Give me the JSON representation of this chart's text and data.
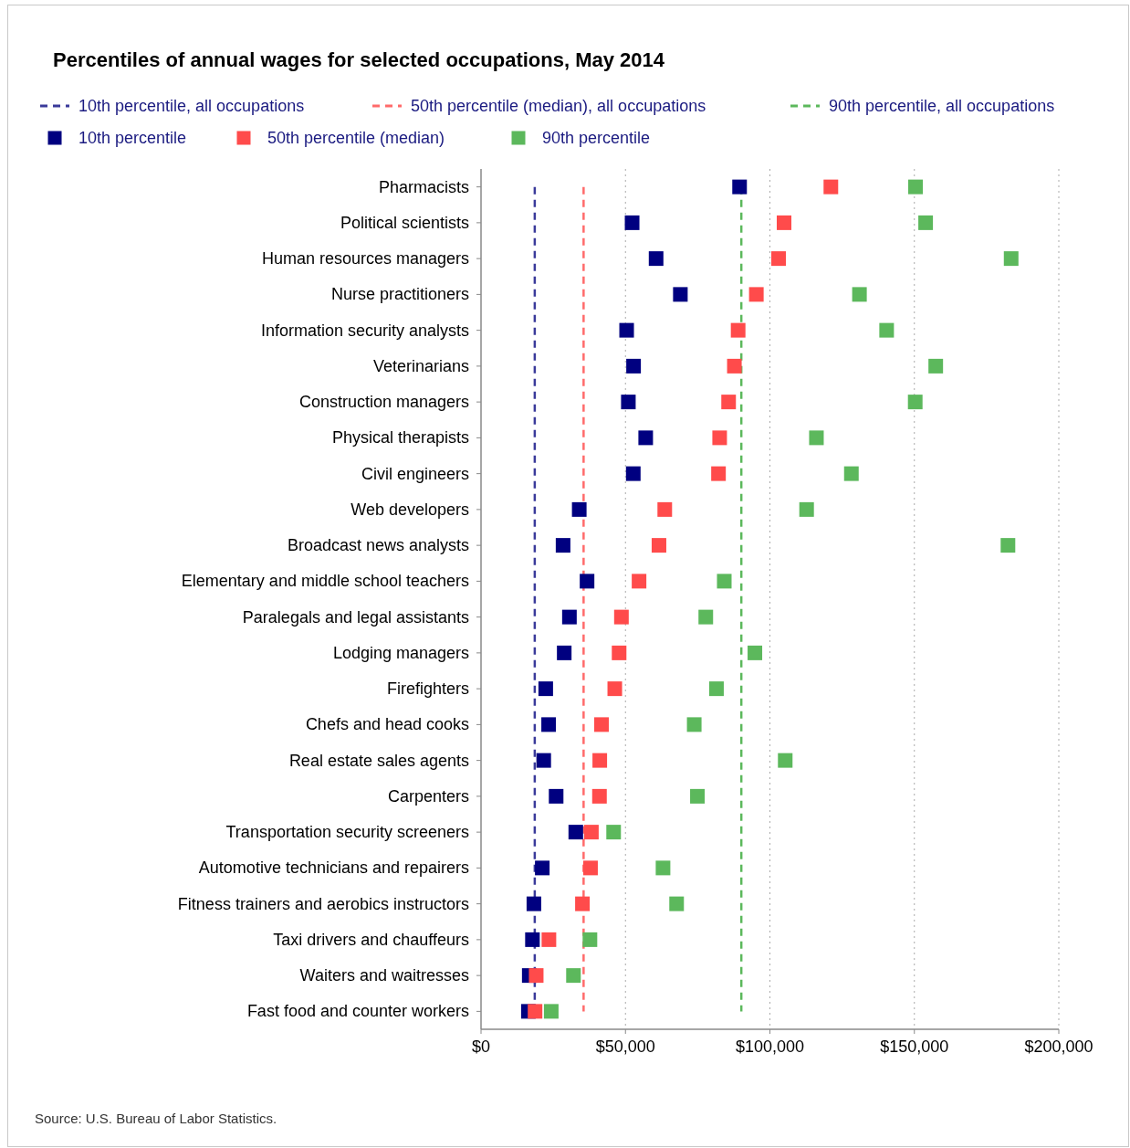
{
  "chart_data": {
    "type": "scatter",
    "orientation": "horizontal",
    "title": "Percentiles of annual wages for selected occupations, May 2014",
    "categories": [
      "Pharmacists",
      "Political scientists",
      "Human resources managers",
      "Nurse practitioners",
      "Information security analysts",
      "Veterinarians",
      "Construction managers",
      "Physical therapists",
      "Civil engineers",
      "Web developers",
      "Broadcast news analysts",
      "Elementary and middle school teachers",
      "Paralegals and legal assistants",
      "Lodging managers",
      "Firefighters",
      "Chefs and head cooks",
      "Real estate sales agents",
      "Carpenters",
      "Transportation security screeners",
      "Automotive technicians and repairers",
      "Fitness trainers and aerobics instructors",
      "Taxi drivers and chauffeurs",
      "Waiters and waitresses",
      "Fast food and counter workers"
    ],
    "series": [
      {
        "name": "10th percentile",
        "color": "#000080",
        "values": [
          89500,
          52300,
          60600,
          69000,
          50400,
          52800,
          51000,
          57000,
          52700,
          34000,
          28400,
          36700,
          30600,
          28800,
          22400,
          23400,
          21700,
          26000,
          32800,
          21200,
          18300,
          17800,
          16700,
          16400
        ]
      },
      {
        "name": "50th percentile (median)",
        "color": "#ff4b4b",
        "values": [
          121100,
          104900,
          103000,
          95300,
          89000,
          87700,
          85700,
          82600,
          82200,
          63600,
          61600,
          54700,
          48600,
          47800,
          46300,
          41700,
          41100,
          41000,
          38200,
          37900,
          35100,
          23500,
          19100,
          18700
        ]
      },
      {
        "name": "90th percentile",
        "color": "#5cb85c",
        "values": [
          150400,
          153900,
          183500,
          131000,
          140400,
          157400,
          150300,
          116100,
          128200,
          112700,
          182400,
          84200,
          77800,
          94800,
          81500,
          73800,
          105300,
          74900,
          45900,
          63000,
          67700,
          37700,
          32000,
          24300
        ]
      }
    ],
    "ref_lines": [
      {
        "axis": "x",
        "value": 18600,
        "label": "10th percentile, all occupations",
        "color": "#3a3a9a",
        "line_style": "dashed"
      },
      {
        "axis": "x",
        "value": 35500,
        "label": "50th percentile (median), all occupations",
        "color": "#ff6b6b",
        "line_style": "dashed"
      },
      {
        "axis": "x",
        "value": 90100,
        "label": "90th percentile, all occupations",
        "color": "#5cb85c",
        "line_style": "dashed"
      }
    ],
    "xlim": [
      0,
      200000
    ],
    "xticks": [
      {
        "value": 0,
        "label": "$0"
      },
      {
        "value": 50000,
        "label": "$50,000"
      },
      {
        "value": 100000,
        "label": "$100,000"
      },
      {
        "value": 150000,
        "label": "$150,000"
      },
      {
        "value": 200000,
        "label": "$200,000"
      }
    ],
    "grid": "x",
    "legend": "top",
    "marker": "square",
    "annotations": [
      "Source: U.S. Bureau of Labor Statistics."
    ]
  }
}
